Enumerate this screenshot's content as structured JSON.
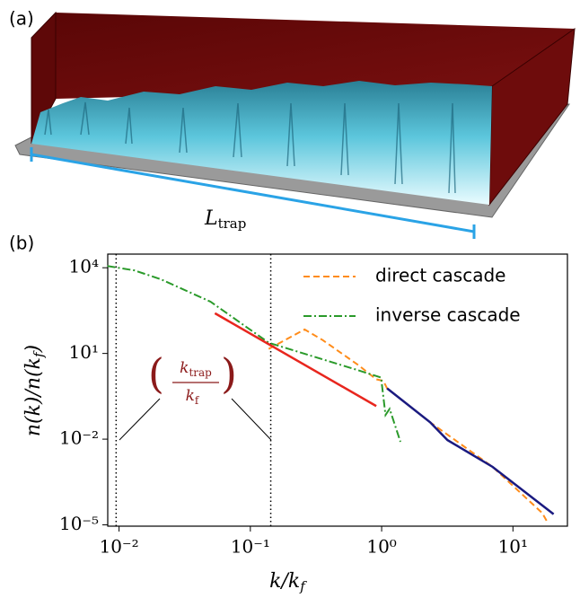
{
  "panel_a": {
    "label": "(a)",
    "length_label": [
      "L",
      "trap"
    ]
  },
  "chart_data": {
    "type": "line",
    "panel_label": "(b)",
    "xlabel": [
      "k/k",
      "f"
    ],
    "ylabel": [
      "n(k)/n(k",
      "f",
      ")"
    ],
    "xscale": "log",
    "yscale": "log",
    "xlim": [
      0.0082,
      26
    ],
    "ylim": [
      9e-06,
      30000
    ],
    "xticks": [
      {
        "value": 0.01,
        "label": "10⁻²"
      },
      {
        "value": 0.1,
        "label": "10⁻¹"
      },
      {
        "value": 1,
        "label": "10⁰"
      },
      {
        "value": 10,
        "label": "10¹"
      }
    ],
    "yticks": [
      {
        "value": 1e-05,
        "label": "10⁻⁵"
      },
      {
        "value": 0.01,
        "label": "10⁻²"
      },
      {
        "value": 10,
        "label": "10¹"
      },
      {
        "value": 10000,
        "label": "10⁴"
      }
    ],
    "vlines": [
      0.0095,
      0.143
    ],
    "annotation": {
      "numerator": [
        "k",
        "trap"
      ],
      "denominator": [
        "k",
        "f"
      ]
    },
    "legend": "upper right",
    "series": [
      {
        "name": "direct cascade",
        "color": "#ff8c1a",
        "dash": "dashed",
        "x": [
          0.138,
          0.189,
          0.259,
          0.355,
          0.486,
          0.665,
          0.91,
          1.03,
          1.1,
          2.34,
          7.0,
          16.7,
          18.2
        ],
        "values": [
          14.4,
          31.6,
          69,
          29.5,
          10.7,
          3.9,
          1.24,
          1.1,
          0.6,
          0.039,
          0.00107,
          2.6e-05,
          1.3e-05
        ]
      },
      {
        "name": "inverse cascade",
        "color": "#2a9a2a",
        "dash": "dashdot",
        "x": [
          0.00815,
          0.0131,
          0.0209,
          0.0497,
          0.138,
          0.665,
          0.99,
          1.07,
          1.15,
          1.39
        ],
        "values": [
          11500,
          8060,
          3920,
          649,
          23.7,
          2.57,
          1.43,
          0.07,
          0.115,
          0.0081
        ]
      },
      {
        "color": "#e8261e",
        "dash": "solid",
        "x": [
          0.0537,
          0.91
        ],
        "values": [
          255,
          0.144
        ]
      },
      {
        "color": "#1a1a80",
        "dash": "solid",
        "x": [
          1.1,
          2.34,
          3.17,
          7.0,
          20.4
        ],
        "values": [
          0.6,
          0.039,
          0.0093,
          0.00107,
          2.37e-05
        ]
      }
    ]
  }
}
